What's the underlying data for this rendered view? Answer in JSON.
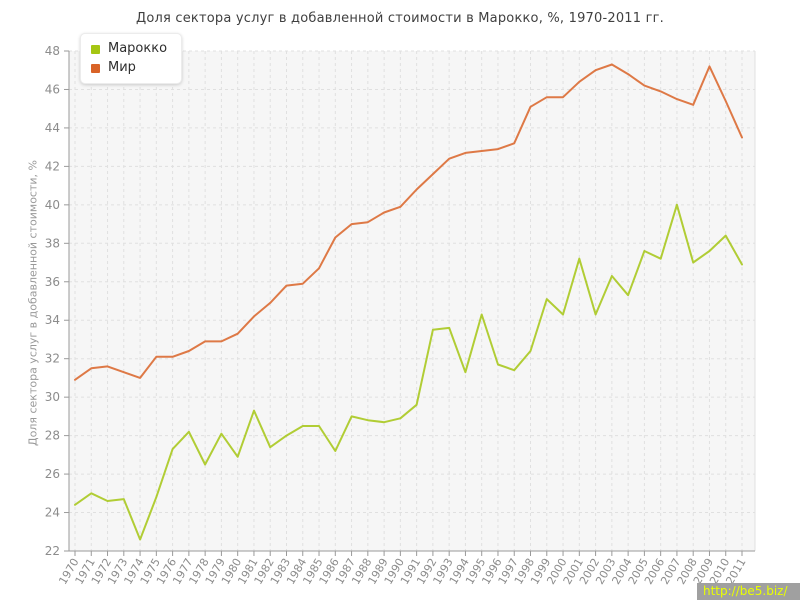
{
  "title": "Доля сектора услуг в добавленной стоимости в Марокко, %, 1970-2011 гг.",
  "watermark": "http://be5.biz/",
  "legend": {
    "items": [
      {
        "label": "Марокко",
        "color": "#a5c613"
      },
      {
        "label": "Мир",
        "color": "#d96327"
      }
    ]
  },
  "chart_data": {
    "type": "line",
    "title": "Доля сектора услуг в добавленной стоимости в Марокко, %, 1970-2011 гг.",
    "xlabel": "",
    "ylabel": "Доля сектора услуг в добавленной стоимости, %",
    "ylim": [
      22,
      48
    ],
    "ytick_step": 2,
    "grid": true,
    "legend_position": "top-left",
    "x": [
      1970,
      1971,
      1972,
      1973,
      1974,
      1975,
      1976,
      1977,
      1978,
      1979,
      1980,
      1981,
      1982,
      1983,
      1984,
      1985,
      1986,
      1987,
      1988,
      1989,
      1990,
      1991,
      1992,
      1993,
      1994,
      1995,
      1996,
      1997,
      1998,
      1999,
      2000,
      2001,
      2002,
      2003,
      2004,
      2005,
      2006,
      2007,
      2008,
      2009,
      2010,
      2011
    ],
    "series": [
      {
        "name": "Марокко",
        "color": "#a5c613",
        "values": [
          24.4,
          25.0,
          24.6,
          24.7,
          22.6,
          24.8,
          27.3,
          28.2,
          26.5,
          28.1,
          26.9,
          29.3,
          27.4,
          28.0,
          28.5,
          28.5,
          27.2,
          29.0,
          28.8,
          28.7,
          28.9,
          29.6,
          33.5,
          33.6,
          31.3,
          34.3,
          31.7,
          31.4,
          32.4,
          35.1,
          34.3,
          37.2,
          34.3,
          36.3,
          35.3,
          37.6,
          37.2,
          40.0,
          37.0,
          37.6,
          38.4,
          36.9
        ]
      },
      {
        "name": "Мир",
        "color": "#d96327",
        "values": [
          30.9,
          31.5,
          31.6,
          31.3,
          31.0,
          32.1,
          32.1,
          32.4,
          32.9,
          32.9,
          33.3,
          34.2,
          34.9,
          35.8,
          35.9,
          36.7,
          38.3,
          39.0,
          39.1,
          39.6,
          39.9,
          40.8,
          41.6,
          42.4,
          42.7,
          42.8,
          42.9,
          43.2,
          45.1,
          45.6,
          45.6,
          46.4,
          47.0,
          47.3,
          46.8,
          46.2,
          45.9,
          45.5,
          45.2,
          47.2,
          45.4,
          43.5
        ]
      }
    ]
  }
}
